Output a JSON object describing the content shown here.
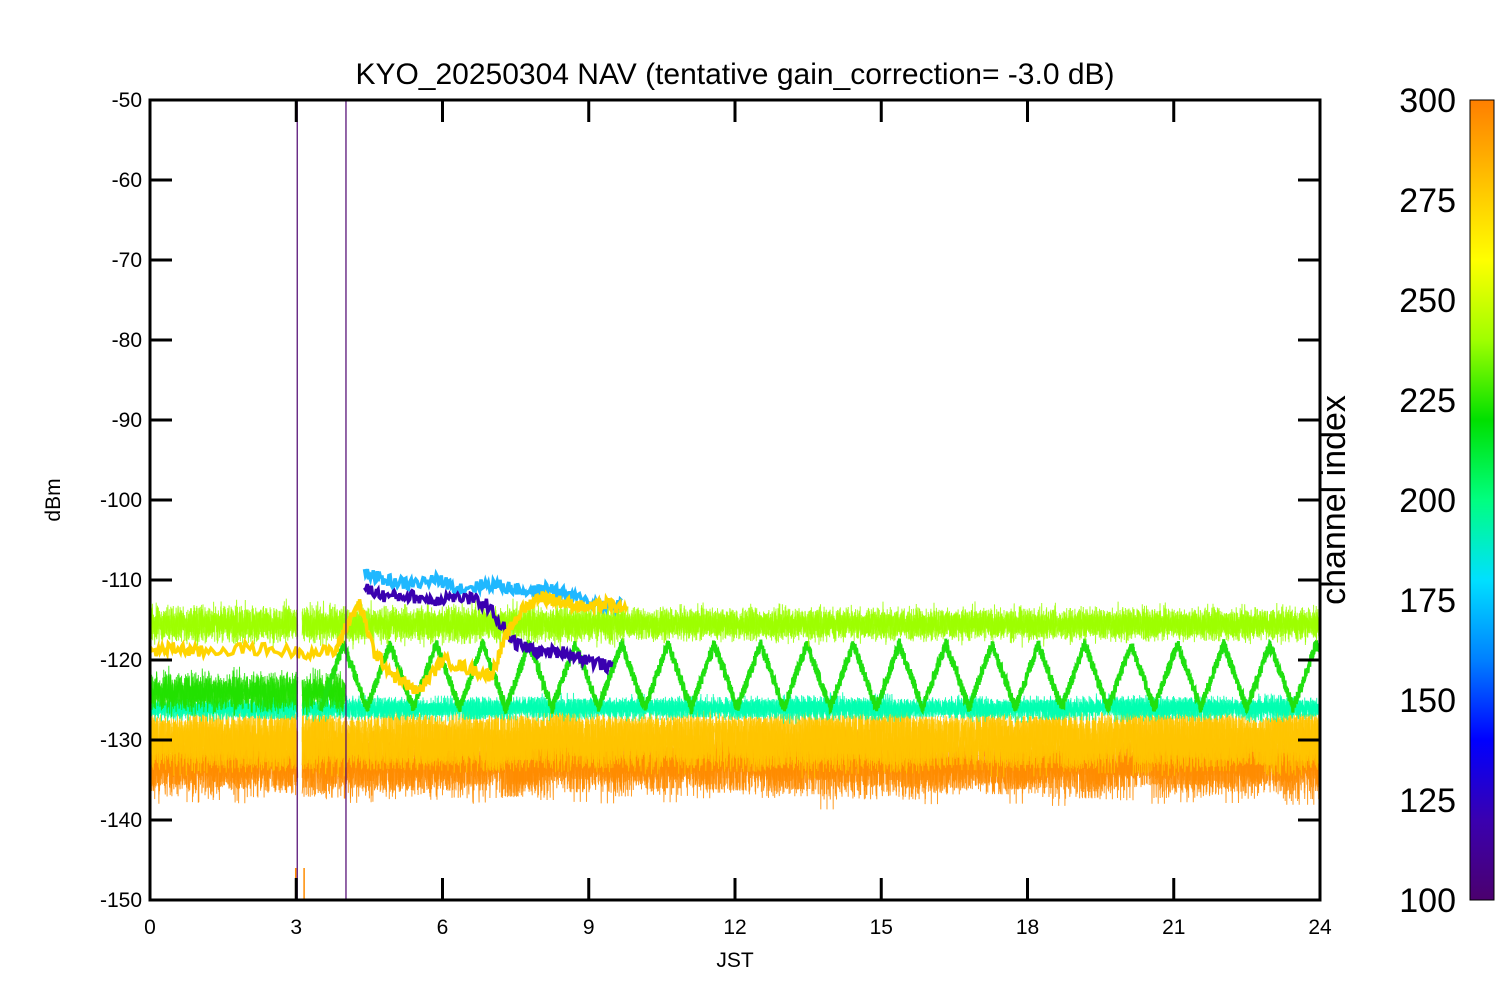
{
  "chart_data": {
    "type": "line",
    "title": "KYO_20250304 NAV (tentative gain_correction= -3.0 dB)",
    "xlabel": "JST",
    "ylabel": "dBm",
    "xlim": [
      0,
      24
    ],
    "ylim": [
      -150,
      -50
    ],
    "xticks": [
      0,
      3,
      6,
      9,
      12,
      15,
      18,
      21,
      24
    ],
    "yticks": [
      -50,
      -60,
      -70,
      -80,
      -90,
      -100,
      -110,
      -120,
      -130,
      -140,
      -150
    ],
    "grid": false,
    "colorbar": {
      "label": "channel index",
      "range": [
        100,
        300
      ],
      "ticks": [
        300,
        275,
        250,
        225,
        200,
        175,
        150,
        125,
        100
      ],
      "colormap": [
        "#4b006e",
        "#3a00b0",
        "#0000ff",
        "#0080ff",
        "#00e0ff",
        "#00ff80",
        "#00e000",
        "#a0ff00",
        "#ffff00",
        "#ffc000",
        "#ff7f00"
      ]
    },
    "series": [
      {
        "channel": 290,
        "color": "#ff8c00",
        "segments": [
          {
            "x": [
              0,
              24
            ],
            "center": -133,
            "spread": 4.5,
            "noise": 4
          }
        ]
      },
      {
        "channel": 270,
        "color": "#ffc400",
        "segments": [
          {
            "x": [
              0,
              24
            ],
            "center": -130,
            "spread": 2.5,
            "noise": 6
          }
        ]
      },
      {
        "channel": 250,
        "color": "#9cff00",
        "segments": [
          {
            "x": [
              0,
              9.7
            ],
            "center": -115.5,
            "spread": 2.5,
            "noise": 2.2
          },
          {
            "x": [
              9.7,
              24
            ],
            "center": -115.5,
            "spread": 2.2,
            "noise": 2
          }
        ]
      },
      {
        "channel": 230,
        "color": "#22e000",
        "segments": [
          {
            "x": [
              0,
              4
            ],
            "center": -124,
            "spread": 3,
            "noise": 2
          }
        ]
      },
      {
        "channel": 228,
        "color": "#20e010",
        "oscillation": {
          "x": [
            3.5,
            24
          ],
          "min": -126,
          "max": -118,
          "period_h": 0.95
        }
      },
      {
        "channel": 200,
        "color": "#00ffb0",
        "segments": [
          {
            "x": [
              0,
              24
            ],
            "center": -126,
            "spread": 1.5,
            "noise": 1.5
          }
        ]
      },
      {
        "channel": 265,
        "color": "#ffd400",
        "track": {
          "x": [
            0,
            0.5,
            1,
            2,
            3,
            3.8,
            4,
            4.3,
            4.6,
            5,
            5.5,
            6,
            6.5,
            7,
            7.3,
            7.6,
            8,
            8.3,
            8.6,
            9,
            9.4,
            9.8
          ],
          "y": [
            -119,
            -118.5,
            -119,
            -118.5,
            -119,
            -119,
            -116,
            -113,
            -119,
            -122,
            -124,
            -120,
            -121,
            -122,
            -117,
            -114,
            -112,
            -112.5,
            -113,
            -113.5,
            -113,
            -114
          ]
        }
      },
      {
        "channel": 180,
        "color": "#20b8ff",
        "track": {
          "x": [
            4.4,
            4.8,
            5.3,
            5.9,
            6.4,
            7,
            7.4,
            7.8,
            8.2,
            8.6,
            9.2,
            9.7
          ],
          "y": [
            -109,
            -110,
            -110.5,
            -110,
            -111,
            -110.5,
            -111,
            -111.5,
            -111,
            -112,
            -113,
            -113
          ]
        }
      },
      {
        "channel": 110,
        "color": "#3a00b0",
        "track": {
          "x": [
            4.4,
            4.8,
            5.3,
            5.8,
            6.3,
            6.9,
            7.5,
            8,
            8.5,
            9,
            9.5
          ],
          "y": [
            -111,
            -112,
            -112,
            -112.5,
            -112,
            -113,
            -118,
            -119,
            -119,
            -120,
            -121
          ]
        }
      },
      {
        "channel": 105,
        "color": "#4b006e",
        "spikes": [
          {
            "x": 3.02,
            "y_top": -50
          },
          {
            "x": 4.02,
            "y_top": -50
          }
        ]
      }
    ],
    "data_gap": {
      "x": [
        3.03,
        3.12
      ]
    }
  }
}
